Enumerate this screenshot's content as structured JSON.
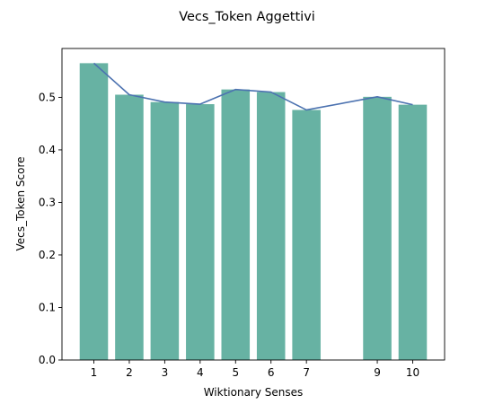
{
  "chart_data": {
    "type": "bar",
    "title": "Vecs_Token Aggettivi",
    "xlabel": "Wiktionary Senses",
    "ylabel": "Vecs_Token Score",
    "x": [
      1,
      2,
      3,
      4,
      5,
      6,
      7,
      9,
      10
    ],
    "x_tick_labels": [
      "1",
      "2",
      "3",
      "4",
      "5",
      "6",
      "7",
      "9",
      "10"
    ],
    "series": [
      {
        "type": "bar",
        "values": [
          0.565,
          0.505,
          0.491,
          0.487,
          0.515,
          0.51,
          0.476,
          0.501,
          0.486
        ],
        "color": "#67b2a3"
      },
      {
        "type": "line",
        "values": [
          0.565,
          0.505,
          0.491,
          0.487,
          0.515,
          0.51,
          0.476,
          0.501,
          0.486
        ],
        "color": "#4c72b0"
      }
    ],
    "y_ticks": [
      0.0,
      0.1,
      0.2,
      0.3,
      0.4,
      0.5
    ],
    "y_tick_labels": [
      "0.0",
      "0.1",
      "0.2",
      "0.3",
      "0.4",
      "0.5"
    ],
    "xlim": [
      0.1,
      10.9
    ],
    "ylim": [
      0,
      0.593
    ],
    "grid": false,
    "legend": "none"
  }
}
